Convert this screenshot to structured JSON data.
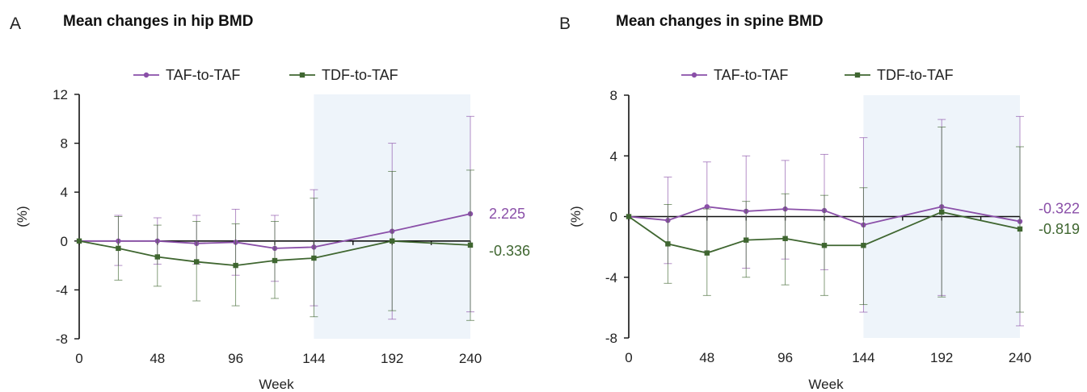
{
  "panels": [
    {
      "letter": "A",
      "title": "Mean changes in hip BMD"
    },
    {
      "letter": "B",
      "title": "Mean changes in spine BMD"
    }
  ],
  "colors": {
    "taf": "#8a4fa8",
    "tdf": "#3f6630",
    "shade": "#eef4fa",
    "axis": "#111111"
  },
  "chart_data": [
    {
      "type": "line",
      "title": "Mean changes in hip BMD",
      "xlabel": "Week",
      "ylabel": "(%)",
      "xlim": [
        0,
        240
      ],
      "ylim": [
        -8,
        12
      ],
      "xticks": [
        0,
        48,
        96,
        144,
        192,
        240
      ],
      "yticks": [
        -8,
        -4,
        0,
        4,
        8,
        12
      ],
      "shaded_range": [
        144,
        240
      ],
      "legend": "top",
      "x": [
        0,
        24,
        48,
        72,
        96,
        120,
        144,
        192,
        240
      ],
      "series": [
        {
          "name": "TAF-to-TAF",
          "marker": "circle",
          "x": [
            0,
            24,
            48,
            72,
            96,
            120,
            144,
            192,
            240
          ],
          "values": [
            0,
            0,
            0,
            -0.2,
            -0.1,
            -0.6,
            -0.5,
            0.8,
            2.225
          ],
          "err_low": [
            0,
            -2.0,
            -1.9,
            -1.9,
            -2.8,
            -3.3,
            -5.3,
            -6.4,
            -5.8
          ],
          "err_high": [
            0,
            2.1,
            1.9,
            2.1,
            2.6,
            2.1,
            4.2,
            8.0,
            10.2
          ],
          "end_label": "2.225"
        },
        {
          "name": "TDF-to-TAF",
          "marker": "square",
          "x": [
            0,
            24,
            48,
            72,
            96,
            120,
            144,
            192,
            240
          ],
          "values": [
            0,
            -0.6,
            -1.3,
            -1.7,
            -2.0,
            -1.6,
            -1.4,
            0,
            -0.336
          ],
          "err_low": [
            0,
            -3.2,
            -3.7,
            -4.9,
            -5.3,
            -4.7,
            -6.2,
            -5.7,
            -6.5
          ],
          "err_high": [
            0,
            2.0,
            1.3,
            1.6,
            1.4,
            1.6,
            3.5,
            5.7,
            5.8
          ],
          "end_label": "-0.336"
        }
      ]
    },
    {
      "type": "line",
      "title": "Mean changes in spine BMD",
      "xlabel": "Week",
      "ylabel": "(%)",
      "xlim": [
        0,
        240
      ],
      "ylim": [
        -8,
        8
      ],
      "xticks": [
        0,
        48,
        96,
        144,
        192,
        240
      ],
      "yticks": [
        -8,
        -4,
        0,
        4,
        8
      ],
      "shaded_range": [
        144,
        240
      ],
      "legend": "top",
      "x": [
        0,
        24,
        48,
        72,
        96,
        120,
        144,
        192,
        240
      ],
      "series": [
        {
          "name": "TAF-to-TAF",
          "marker": "circle",
          "x": [
            0,
            24,
            48,
            72,
            96,
            120,
            144,
            192,
            240
          ],
          "values": [
            0,
            -0.25,
            0.65,
            0.35,
            0.5,
            0.4,
            -0.55,
            0.65,
            -0.322
          ],
          "err_low": [
            0,
            -3.1,
            -2.3,
            -3.4,
            -2.8,
            -3.5,
            -6.3,
            -5.2,
            -7.2
          ],
          "err_high": [
            0,
            2.6,
            3.6,
            4.0,
            3.7,
            4.1,
            5.2,
            6.4,
            6.6
          ],
          "end_label": "-0.322"
        },
        {
          "name": "TDF-to-TAF",
          "marker": "square",
          "x": [
            0,
            24,
            48,
            72,
            96,
            120,
            144,
            192,
            240
          ],
          "values": [
            0,
            -1.8,
            -2.4,
            -1.55,
            -1.45,
            -1.9,
            -1.9,
            0.3,
            -0.819
          ],
          "err_low": [
            0,
            -4.4,
            -5.2,
            -4.0,
            -4.5,
            -5.2,
            -5.8,
            -5.3,
            -6.3
          ],
          "err_high": [
            0,
            0.8,
            0.5,
            1.0,
            1.5,
            1.4,
            1.9,
            5.9,
            4.6
          ],
          "end_label": "-0.819"
        }
      ]
    }
  ]
}
